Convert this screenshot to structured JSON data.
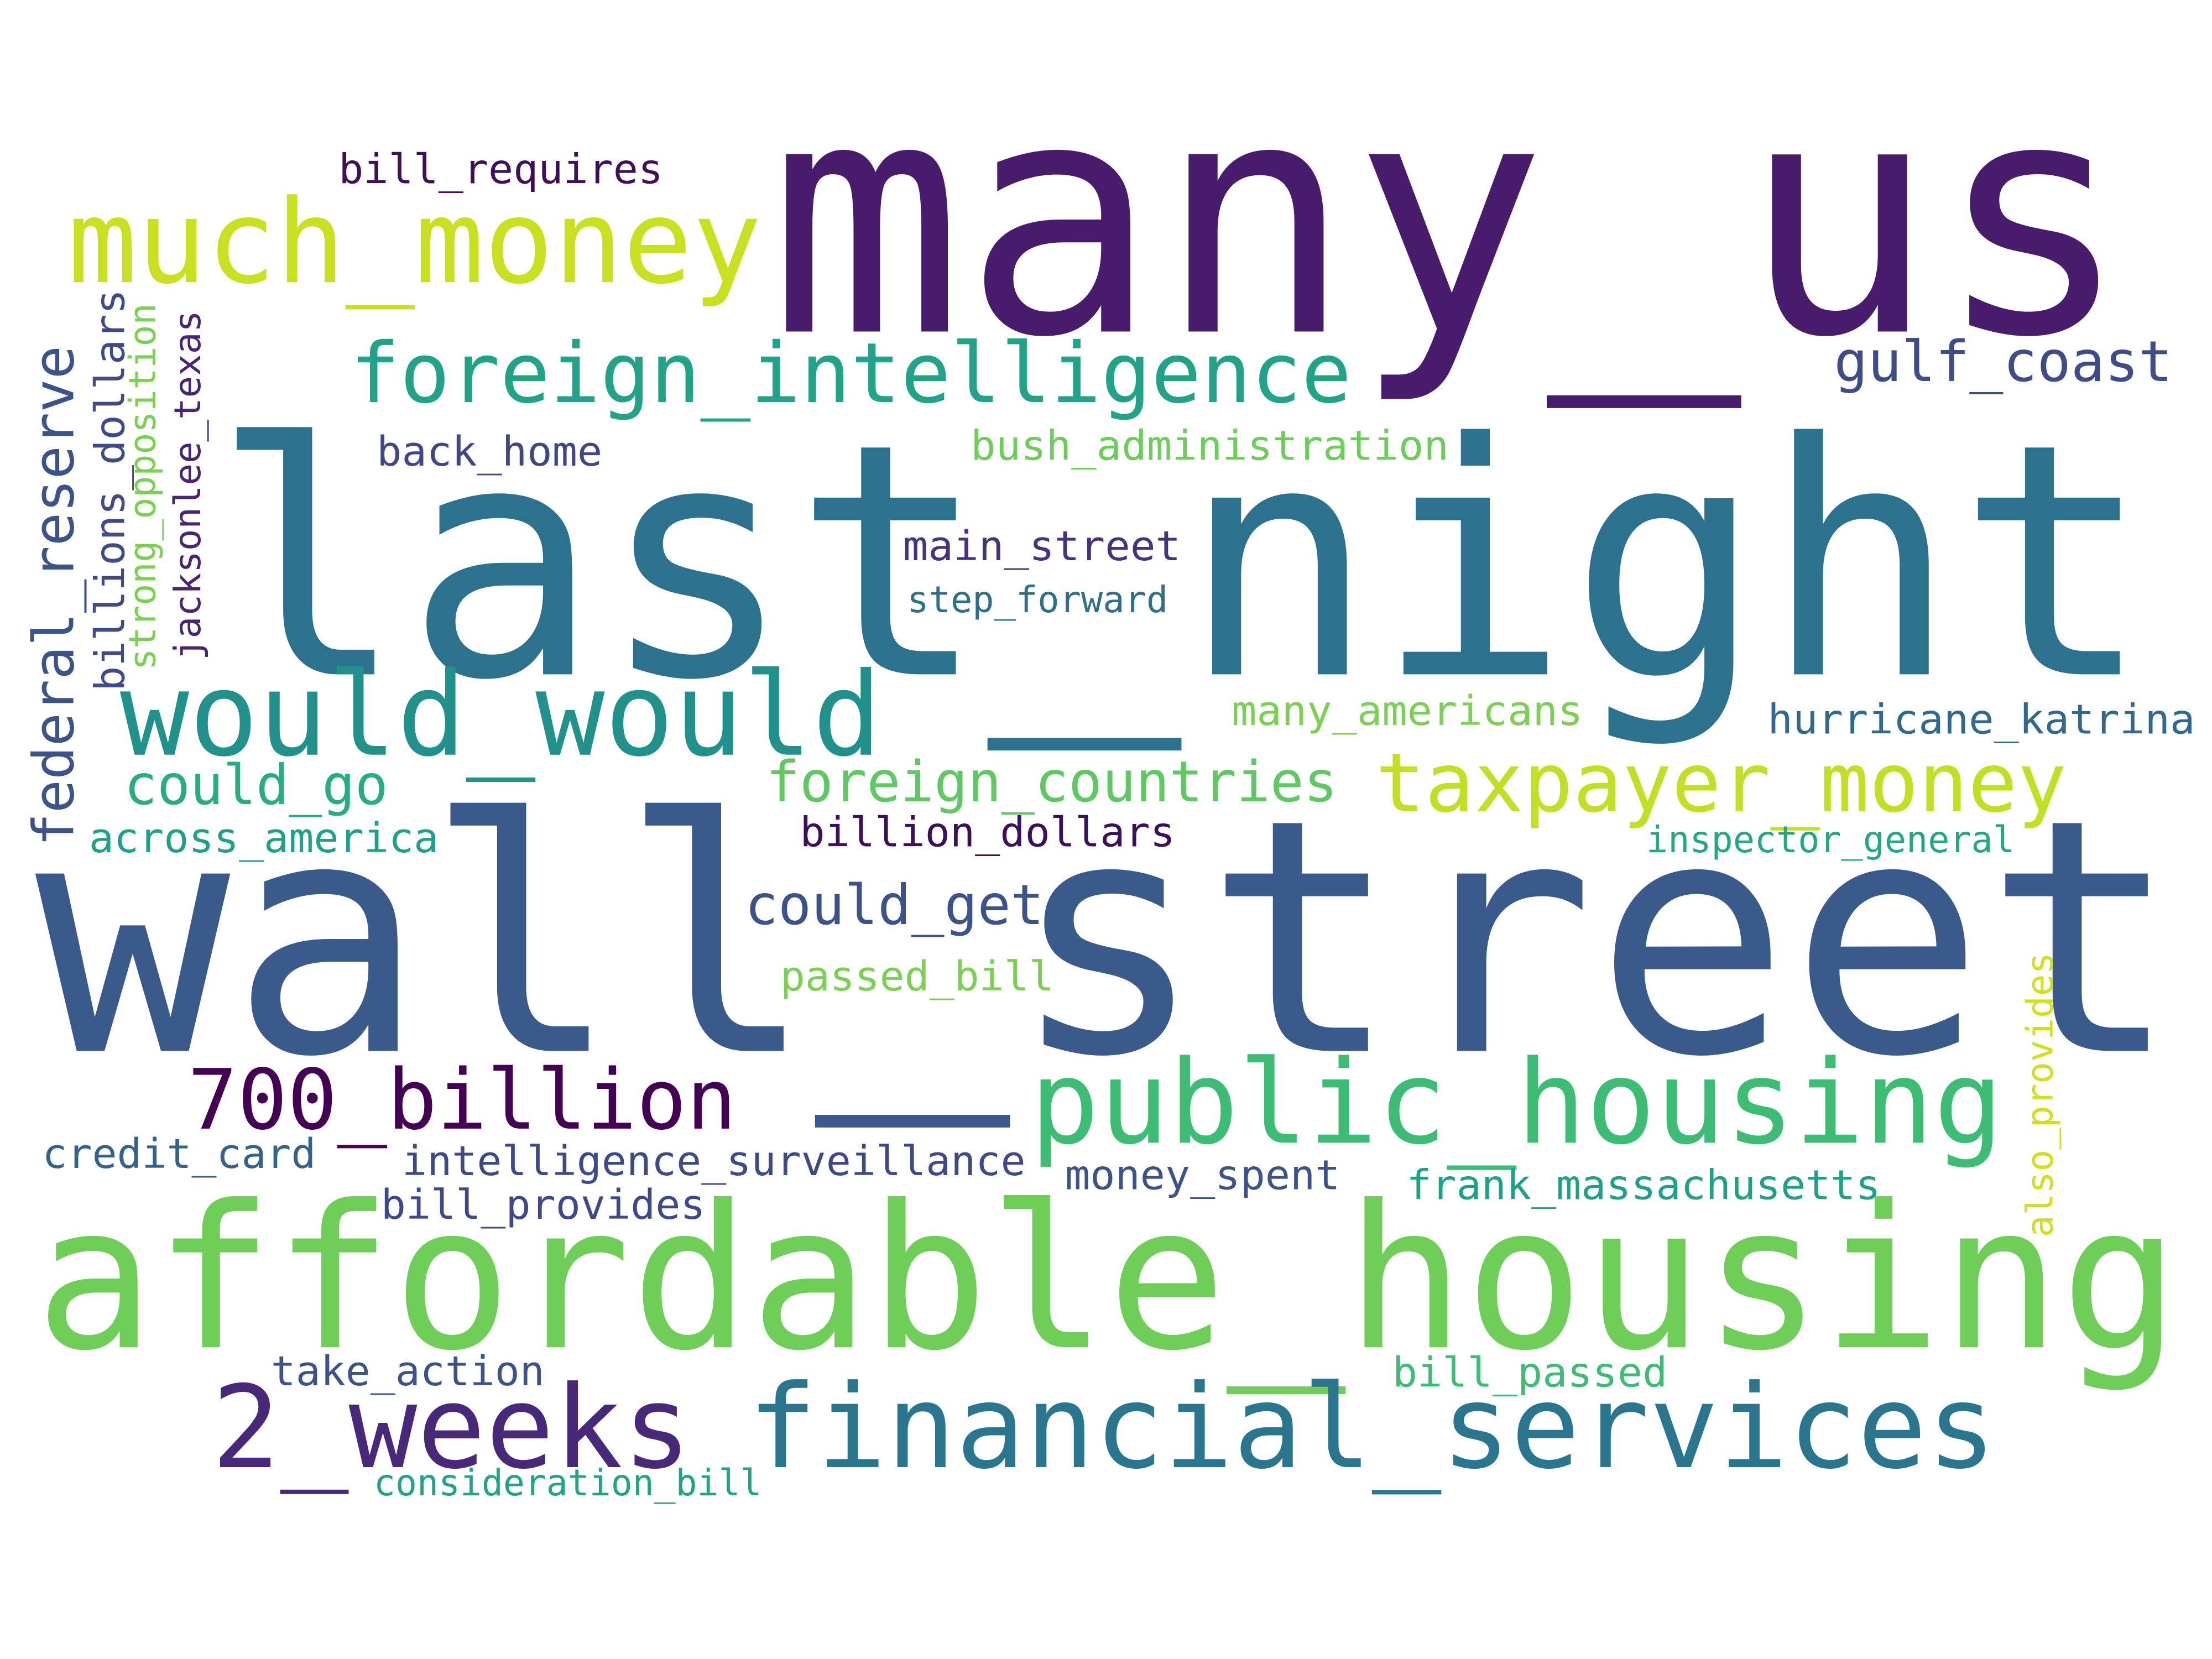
{
  "words": [
    "many_us",
    "last_night",
    "wall_street",
    "affordable_housing",
    "much_money",
    "foreign_intelligence",
    "would_would",
    "taxpayer_money",
    "public_housing",
    "700_billion",
    "2_weeks",
    "financial_services",
    "gulf_coast",
    "bill_requires",
    "back_home",
    "bush_administration",
    "main_street",
    "step_forward",
    "many_americans",
    "hurricane_katrina",
    "could_go",
    "foreign_countries",
    "across_america",
    "billion_dollars",
    "inspector_general",
    "could_get",
    "passed_bill",
    "credit_card",
    "intelligence_surveillance",
    "money_spent",
    "frank_massachusetts",
    "bill_provides",
    "take_action",
    "bill_passed",
    "consideration_bill",
    "federal_reserve",
    "billions_dollars",
    "strong_opposition",
    "jacksonlee_texas",
    "also_provides"
  ]
}
